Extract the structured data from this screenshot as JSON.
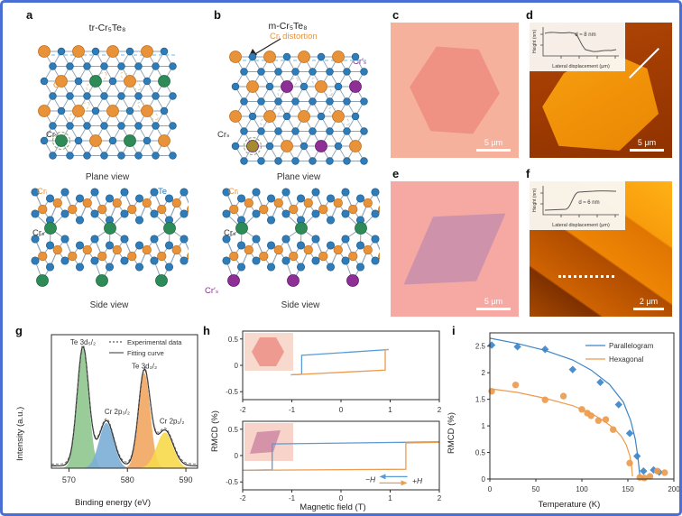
{
  "colors": {
    "te": "#2f7cb8",
    "cr_i": "#e8923a",
    "cr_s": "#2e8b57",
    "cr_s_prime": "#8e2f96",
    "bond": "#93a2b2",
    "olive": "#a38c2e"
  },
  "panels": {
    "a": {
      "label": "a",
      "title": "tr-Cr₅Te₈",
      "plane_view": "Plane view",
      "side_view": "Side view",
      "atom_labels": {
        "cr_i": "Crᵢ",
        "cr_s": "Crₛ",
        "cr_i_side": "Crᵢ",
        "cr_s_side": "Crₛ",
        "te": "Te"
      }
    },
    "b": {
      "label": "b",
      "title": "m-Cr₅Te₈",
      "distortion": "Crᵢ distortion",
      "cr_s_prime_top": "Cr′ₛ",
      "plane_view": "Plane view",
      "side_view": "Side view",
      "atom_labels": {
        "cr_s_top": "Crₛ",
        "cr_i_side": "Crᵢ",
        "cr_s_side": "Crₛ",
        "cr_s_prime_side": "Cr′ₛ"
      }
    },
    "c": {
      "label": "c",
      "scale_bar": "5 μm"
    },
    "d": {
      "label": "d",
      "scale_bar": "5 μm",
      "inset": {
        "ylabel": "Height (nm)",
        "xlabel": "Lateral displacement (μm)",
        "annotation": "d ≈ 8 nm"
      }
    },
    "e": {
      "label": "e",
      "scale_bar": "5 μm"
    },
    "f": {
      "label": "f",
      "scale_bar": "2 μm",
      "inset": {
        "ylabel": "Height (nm)",
        "xlabel": "Lateral displacement (μm)",
        "annotation": "d ≈ 6 nm"
      }
    },
    "g": {
      "label": "g"
    },
    "h": {
      "label": "h",
      "sweep_legend": {
        "neg": "−H",
        "pos": "+H"
      }
    },
    "i": {
      "label": "i"
    }
  },
  "chart_data": [
    {
      "id": "xps",
      "type": "area",
      "xlabel": "Binding energy (eV)",
      "ylabel": "Intensity (a.u.)",
      "xlim": [
        567,
        592
      ],
      "xticks": [
        570,
        580,
        590
      ],
      "legend": [
        "Experimental data",
        "Fitting curve"
      ],
      "peaks": [
        {
          "name": "Te 3d₅/₂",
          "center": 572.4,
          "height": 1.0,
          "width": 1.0,
          "color": "#8fc78f"
        },
        {
          "name": "Cr 2p₃/₂",
          "center": 576.4,
          "height": 0.38,
          "width": 1.25,
          "color": "#7aaed6"
        },
        {
          "name": "Te 3d₃/₂",
          "center": 582.9,
          "height": 0.8,
          "width": 1.0,
          "color": "#f2a661"
        },
        {
          "name": "Cr 2p₁/₂",
          "center": 586.4,
          "height": 0.3,
          "width": 1.4,
          "color": "#f7d84a"
        }
      ]
    },
    {
      "id": "rmcd_hexagonal_flake",
      "type": "line",
      "shape_inset": "hexagon",
      "ylabel": "RMCD (%)",
      "xlim": [
        -2,
        2
      ],
      "ylim": [
        -0.65,
        0.65
      ],
      "xticks": [
        -2,
        -1,
        0,
        1,
        2
      ],
      "yticks": [
        0.5,
        0,
        -0.5
      ],
      "series": [
        {
          "name": "+H sweep",
          "color": "#5b9bd5",
          "points": [
            [
              -1.02,
              -0.18
            ],
            [
              -0.8,
              -0.17
            ],
            [
              -0.8,
              0.19
            ],
            [
              0.97,
              0.3
            ]
          ]
        },
        {
          "name": "−H sweep",
          "color": "#ed9b4e",
          "points": [
            [
              -1.02,
              -0.18
            ],
            [
              0.9,
              -0.09
            ],
            [
              0.9,
              0.3
            ],
            [
              0.97,
              0.3
            ]
          ]
        }
      ]
    },
    {
      "id": "rmcd_parallelogram_flake",
      "type": "line",
      "shape_inset": "parallelogram",
      "xlabel": "Magnetic field (T)",
      "xlim": [
        -2,
        2
      ],
      "ylim": [
        -0.65,
        0.65
      ],
      "xticks": [
        -2,
        -1,
        0,
        1,
        2
      ],
      "yticks": [
        0.5,
        0,
        -0.5
      ],
      "series": [
        {
          "name": "+H sweep",
          "color": "#5b9bd5",
          "points": [
            [
              -2,
              -0.28
            ],
            [
              -1.4,
              -0.27
            ],
            [
              -1.4,
              0.22
            ],
            [
              2,
              0.26
            ]
          ]
        },
        {
          "name": "−H sweep",
          "color": "#ed9b4e",
          "points": [
            [
              -2,
              -0.28
            ],
            [
              1.32,
              -0.26
            ],
            [
              1.32,
              0.24
            ],
            [
              2,
              0.25
            ]
          ]
        }
      ]
    },
    {
      "id": "rmcd_vs_temperature",
      "type": "scatter",
      "xlabel": "Temperature (K)",
      "ylabel": "RMCD (%)",
      "xlim": [
        0,
        200
      ],
      "ylim": [
        0,
        2.75
      ],
      "xticks": [
        0,
        50,
        100,
        150,
        200
      ],
      "yticks": [
        0,
        0.5,
        1.0,
        1.5,
        2.0,
        2.5
      ],
      "legend_position": "top-right",
      "series": [
        {
          "name": "Parallelogram",
          "color": "#3d85c8",
          "marker": "diamond",
          "points": [
            [
              2,
              2.52
            ],
            [
              30,
              2.49
            ],
            [
              60,
              2.44
            ],
            [
              90,
              2.06
            ],
            [
              120,
              1.82
            ],
            [
              140,
              1.4
            ],
            [
              152,
              0.86
            ],
            [
              160,
              0.43
            ],
            [
              167,
              0.15
            ],
            [
              178,
              0.17
            ],
            [
              184,
              0.13
            ]
          ],
          "fit": [
            [
              0,
              2.65
            ],
            [
              30,
              2.55
            ],
            [
              60,
              2.42
            ],
            [
              90,
              2.24
            ],
            [
              110,
              2.05
            ],
            [
              130,
              1.78
            ],
            [
              145,
              1.45
            ],
            [
              153,
              1.1
            ],
            [
              158,
              0.75
            ],
            [
              161,
              0.4
            ],
            [
              163,
              0.05
            ]
          ]
        },
        {
          "name": "Hexagonal",
          "color": "#ed9b4e",
          "marker": "circle",
          "points": [
            [
              2,
              1.65
            ],
            [
              28,
              1.77
            ],
            [
              60,
              1.49
            ],
            [
              80,
              1.56
            ],
            [
              100,
              1.31
            ],
            [
              106,
              1.24
            ],
            [
              110,
              1.19
            ],
            [
              118,
              1.1
            ],
            [
              126,
              1.12
            ],
            [
              134,
              0.93
            ],
            [
              152,
              0.3
            ],
            [
              163,
              0.03
            ],
            [
              168,
              0.02
            ],
            [
              174,
              0.05
            ],
            [
              182,
              0.15
            ],
            [
              190,
              0.12
            ]
          ],
          "fit": [
            [
              0,
              1.7
            ],
            [
              30,
              1.63
            ],
            [
              60,
              1.52
            ],
            [
              90,
              1.38
            ],
            [
              110,
              1.24
            ],
            [
              125,
              1.08
            ],
            [
              135,
              0.95
            ],
            [
              143,
              0.8
            ],
            [
              148,
              0.65
            ],
            [
              152,
              0.45
            ],
            [
              154,
              0.25
            ],
            [
              155,
              0.05
            ]
          ]
        }
      ]
    }
  ]
}
